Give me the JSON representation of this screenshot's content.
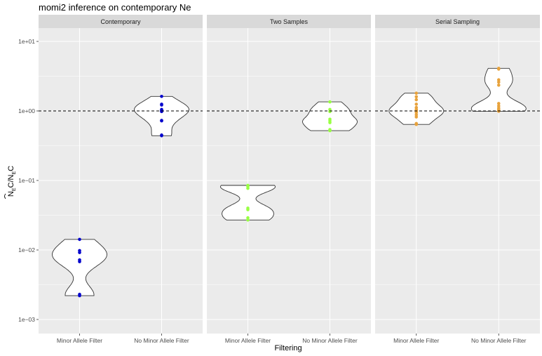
{
  "chart_data": {
    "type": "violin",
    "title": "momi2 inference on contemporary Ne",
    "xlabel": "Filtering",
    "ylabel": "N̂_E C/N_E C",
    "yscale": "log10",
    "ylim": [
      0.0007,
      30
    ],
    "y_ticks": [
      0.001,
      0.01,
      0.1,
      1,
      10
    ],
    "y_tick_labels": [
      "1e−03",
      "1e−02",
      "1e−01",
      "1e+00",
      "1e+01"
    ],
    "reference_line": 1,
    "categories": [
      "Minor Allele Filter",
      "No Minor Allele Filter"
    ],
    "colors": {
      "panel_bg": "#ebebeb",
      "grid": "#ffffff",
      "strip_bg": "#d9d9d9"
    },
    "panels": [
      {
        "name": "Contemporary",
        "color": "#0000cc",
        "groups": [
          {
            "category": "Minor Allele Filter",
            "values": [
              0.0022,
              0.0023,
              0.0068,
              0.0072,
              0.0092,
              0.0098,
              0.0142
            ]
          },
          {
            "category": "No Minor Allele Filter",
            "values": [
              0.44,
              0.45,
              0.72,
              0.73,
              0.98,
              1.0,
              1.02,
              1.05,
              1.22,
              1.25,
              1.62
            ]
          }
        ]
      },
      {
        "name": "Two Samples",
        "color": "#99ff44",
        "groups": [
          {
            "category": "Minor Allele Filter",
            "values": [
              0.027,
              0.029,
              0.038,
              0.04,
              0.077,
              0.082,
              0.085
            ]
          },
          {
            "category": "No Minor Allele Filter",
            "values": [
              0.52,
              0.54,
              0.68,
              0.72,
              0.76,
              0.98,
              1.05,
              1.35
            ]
          }
        ]
      },
      {
        "name": "Serial Sampling",
        "color": "#e8a33d",
        "groups": [
          {
            "category": "Minor Allele Filter",
            "values": [
              0.64,
              0.66,
              0.82,
              0.88,
              0.95,
              1.0,
              1.05,
              1.12,
              1.25,
              1.45,
              1.6,
              1.8
            ]
          },
          {
            "category": "No Minor Allele Filter",
            "values": [
              0.99,
              1.0,
              1.02,
              1.05,
              1.1,
              1.18,
              1.28,
              2.35,
              2.6,
              2.8,
              4.0,
              4.1
            ]
          }
        ]
      }
    ]
  }
}
